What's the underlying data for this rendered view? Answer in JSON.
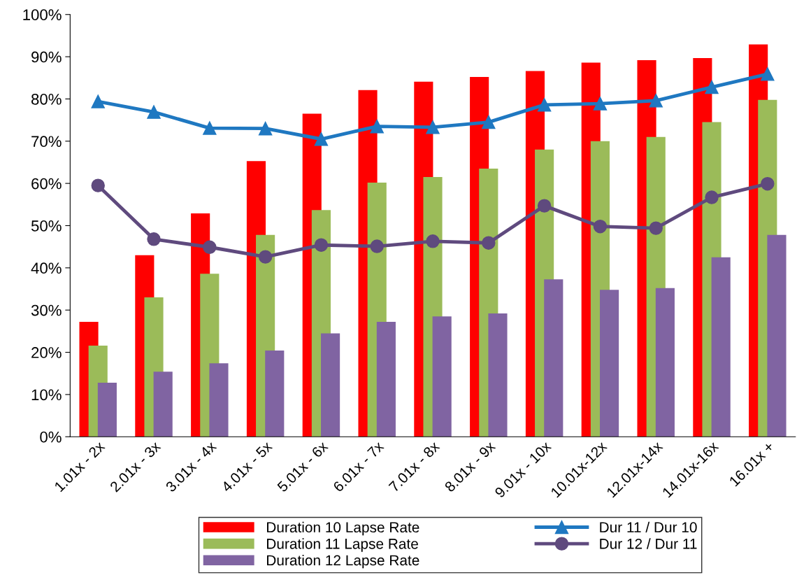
{
  "chart_data": {
    "type": "bar",
    "categories": [
      "1.01x - 2x",
      "2.01x - 3x",
      "3.01x - 4x",
      "4.01x - 5x",
      "5.01x - 6x",
      "6.01x - 7x",
      "7.01x - 8x",
      "8.01x - 9x",
      "9.01x - 10x",
      "10.01x-12x",
      "12.01x-14x",
      "14.01x-16x",
      "16.01x +"
    ],
    "series": [
      {
        "name": "Duration 10 Lapse Rate",
        "color": "#ff0000",
        "values": [
          27.2,
          43.0,
          52.9,
          65.3,
          76.5,
          82.1,
          84.1,
          85.2,
          86.6,
          88.6,
          89.2,
          89.7,
          92.9
        ]
      },
      {
        "name": "Duration 11 Lapse Rate",
        "color": "#9bbb59",
        "values": [
          21.6,
          33.0,
          38.6,
          47.8,
          53.7,
          60.2,
          61.5,
          63.5,
          68.0,
          70.0,
          71.0,
          74.5,
          79.8
        ]
      },
      {
        "name": "Duration 12 Lapse Rate",
        "color": "#8064a2",
        "values": [
          12.8,
          15.4,
          17.4,
          20.4,
          24.5,
          27.2,
          28.5,
          29.2,
          37.3,
          34.8,
          35.2,
          42.5,
          47.8
        ]
      },
      {
        "name": "Dur 11 / Dur 10",
        "type": "line",
        "color": "#1f78c1",
        "marker": "triangle",
        "values": [
          79.4,
          76.9,
          73.1,
          73.0,
          70.5,
          73.5,
          73.3,
          74.5,
          78.6,
          78.9,
          79.6,
          82.8,
          85.9
        ]
      },
      {
        "name": "Dur 12 / Dur 11",
        "type": "line",
        "color": "#5f4a7e",
        "marker": "circle",
        "values": [
          59.5,
          46.8,
          44.9,
          42.6,
          45.4,
          45.1,
          46.3,
          45.9,
          54.7,
          49.8,
          49.4,
          56.7,
          59.9
        ]
      }
    ],
    "ylim": [
      0,
      100
    ],
    "yticks": [
      {
        "value": 0,
        "label": "0%"
      },
      {
        "value": 10,
        "label": "10%"
      },
      {
        "value": 20,
        "label": "20%"
      },
      {
        "value": 30,
        "label": "30%"
      },
      {
        "value": 40,
        "label": "40%"
      },
      {
        "value": 50,
        "label": "50%"
      },
      {
        "value": 60,
        "label": "60%"
      },
      {
        "value": 70,
        "label": "70%"
      },
      {
        "value": 80,
        "label": "80%"
      },
      {
        "value": 90,
        "label": "90%"
      },
      {
        "value": 100,
        "label": "100%"
      }
    ],
    "grid": false,
    "legend": "bottom"
  }
}
